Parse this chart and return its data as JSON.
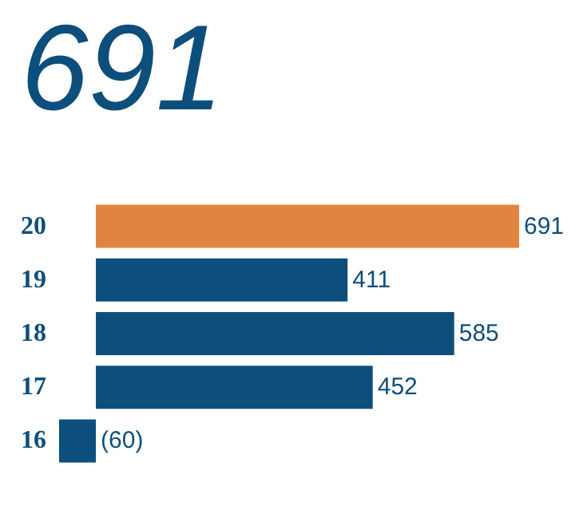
{
  "chart_data": {
    "type": "bar",
    "orientation": "horizontal",
    "title": "691",
    "categories": [
      "20",
      "19",
      "18",
      "17",
      "16"
    ],
    "values": [
      691,
      411,
      585,
      452,
      -60
    ],
    "value_labels": [
      "691",
      "411",
      "585",
      "452",
      "(60)"
    ],
    "colors": [
      "#e0843f",
      "#0d4f7c",
      "#0d4f7c",
      "#0d4f7c",
      "#0d4f7c"
    ]
  }
}
